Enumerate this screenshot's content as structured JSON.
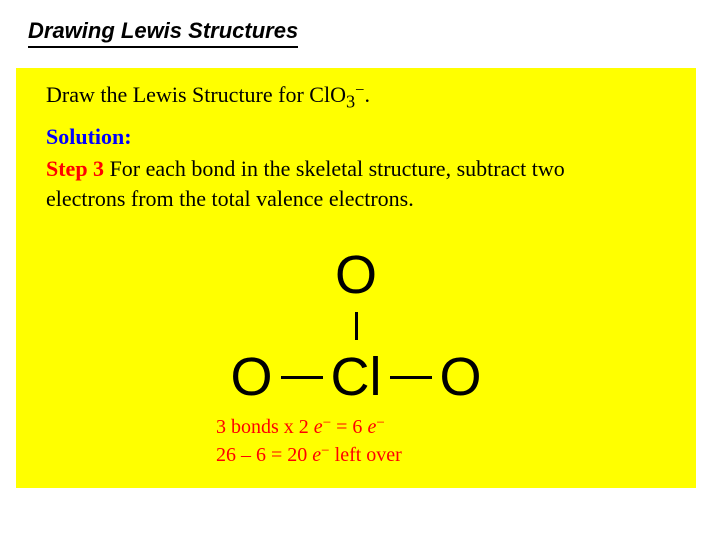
{
  "title": "Drawing Lewis Structures",
  "panel": {
    "background": "#ffff00",
    "prompt": {
      "prefix": "Draw the Lewis Structure for ClO",
      "sub": "3",
      "super": "−",
      "suffix": "."
    },
    "solution_label": "Solution:",
    "step": {
      "label": "Step 3",
      "text_a": " For each bond in the skeletal structure, subtract two",
      "text_b": "electrons from the total valence electrons."
    },
    "structure": {
      "atoms": {
        "top": "O",
        "left": "O",
        "center": "Cl",
        "right": "O"
      }
    },
    "calc": {
      "line1": {
        "a": "3 bonds x 2 ",
        "e": "e",
        "m1": "−",
        "b": " = 6 ",
        "e2": "e",
        "m2": "−"
      },
      "line2": {
        "a": "26 – 6 = 20 ",
        "e": "e",
        "m": "−",
        "b": "  left over"
      }
    }
  },
  "colors": {
    "blue": "#0000ff",
    "red": "#ff0000",
    "black": "#000000",
    "yellow": "#ffff00",
    "white": "#ffffff"
  }
}
